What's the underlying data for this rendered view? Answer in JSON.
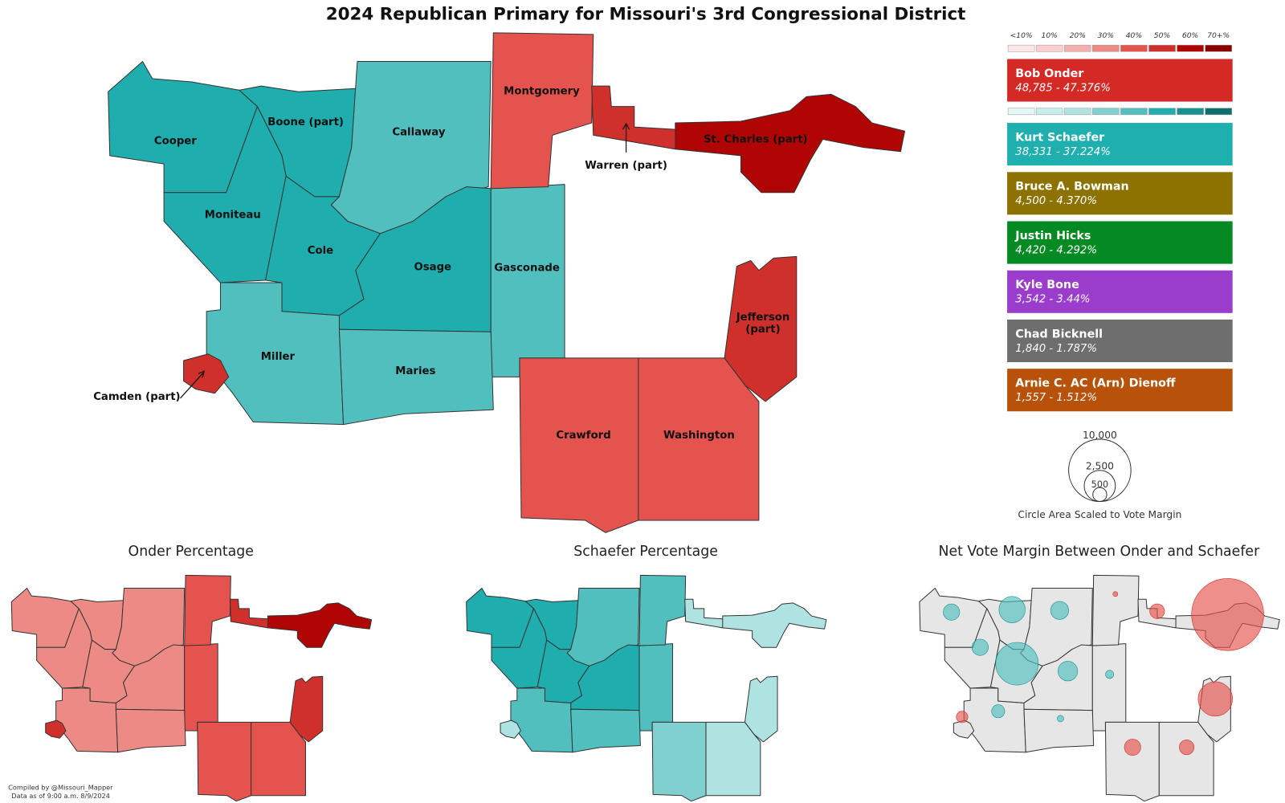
{
  "title": "2024 Republican Primary for Missouri's 3rd Congressional District",
  "scale_labels": [
    "<10%",
    "10%",
    "20%",
    "30%",
    "40%",
    "50%",
    "60%",
    "70+%"
  ],
  "scale_colors": {
    "onder": [
      "#fde6e6",
      "#f9cfcf",
      "#f3b0ae",
      "#ec8a86",
      "#e5534f",
      "#d0302c",
      "#b00505",
      "#8a0000"
    ],
    "schaefer": [
      "#e4f6f6",
      "#c6ecec",
      "#aee3e2",
      "#7fd0cf",
      "#52bfbf",
      "#1fadad",
      "#17928f",
      "#0f6f6c"
    ]
  },
  "candidates": [
    {
      "name": "Bob Onder",
      "result": "48,785 - 47.376%",
      "color": "#d42a26"
    },
    {
      "name": "Kurt Schaefer",
      "result": "38,331 - 37.224%",
      "color": "#1fafaf"
    },
    {
      "name": "Bruce A. Bowman",
      "result": "4,500 - 4.370%",
      "color": "#8c7200"
    },
    {
      "name": "Justin Hicks",
      "result": "4,420 - 4.292%",
      "color": "#048a22"
    },
    {
      "name": "Kyle Bone",
      "result": "3,542 - 3.44%",
      "color": "#9a3ccc"
    },
    {
      "name": "Chad Bicknell",
      "result": "1,840 - 1.787%",
      "color": "#6e6e6e"
    },
    {
      "name": "Arnie C. AC (Arn) Dienoff",
      "result": "1,557 - 1.512%",
      "color": "#b8520a"
    }
  ],
  "counties": [
    {
      "label": [
        "Cooper"
      ]
    },
    {
      "label": [
        "Boone (part)"
      ]
    },
    {
      "label": [
        "Callaway"
      ]
    },
    {
      "label": [
        "Moniteau"
      ]
    },
    {
      "label": [
        "Cole"
      ]
    },
    {
      "label": [
        "Osage"
      ]
    },
    {
      "label": [
        "Gasconade"
      ]
    },
    {
      "label": [
        "Montgomery"
      ]
    },
    {
      "label": [
        "Warren (part)"
      ]
    },
    {
      "label": [
        "St. Charles (part)"
      ]
    },
    {
      "label": [
        "Miller"
      ]
    },
    {
      "label": [
        "Maries"
      ]
    },
    {
      "label": [
        "Camden (part)"
      ]
    },
    {
      "label": [
        "Jefferson",
        "(part)"
      ]
    },
    {
      "label": [
        "Crawford"
      ]
    },
    {
      "label": [
        "Washington"
      ]
    }
  ],
  "circle_legend": {
    "sizes": [
      "10,000",
      "2,500",
      "500"
    ],
    "caption": "Circle Area Scaled to Vote Margin"
  },
  "small_maps": [
    "Onder Percentage",
    "Schaefer Percentage",
    "Net Vote Margin Between Onder and Schaefer"
  ],
  "credits": [
    "Compiled by @Missouri_Mapper",
    "Data as of 9:00 a.m. 8/9/2024"
  ]
}
